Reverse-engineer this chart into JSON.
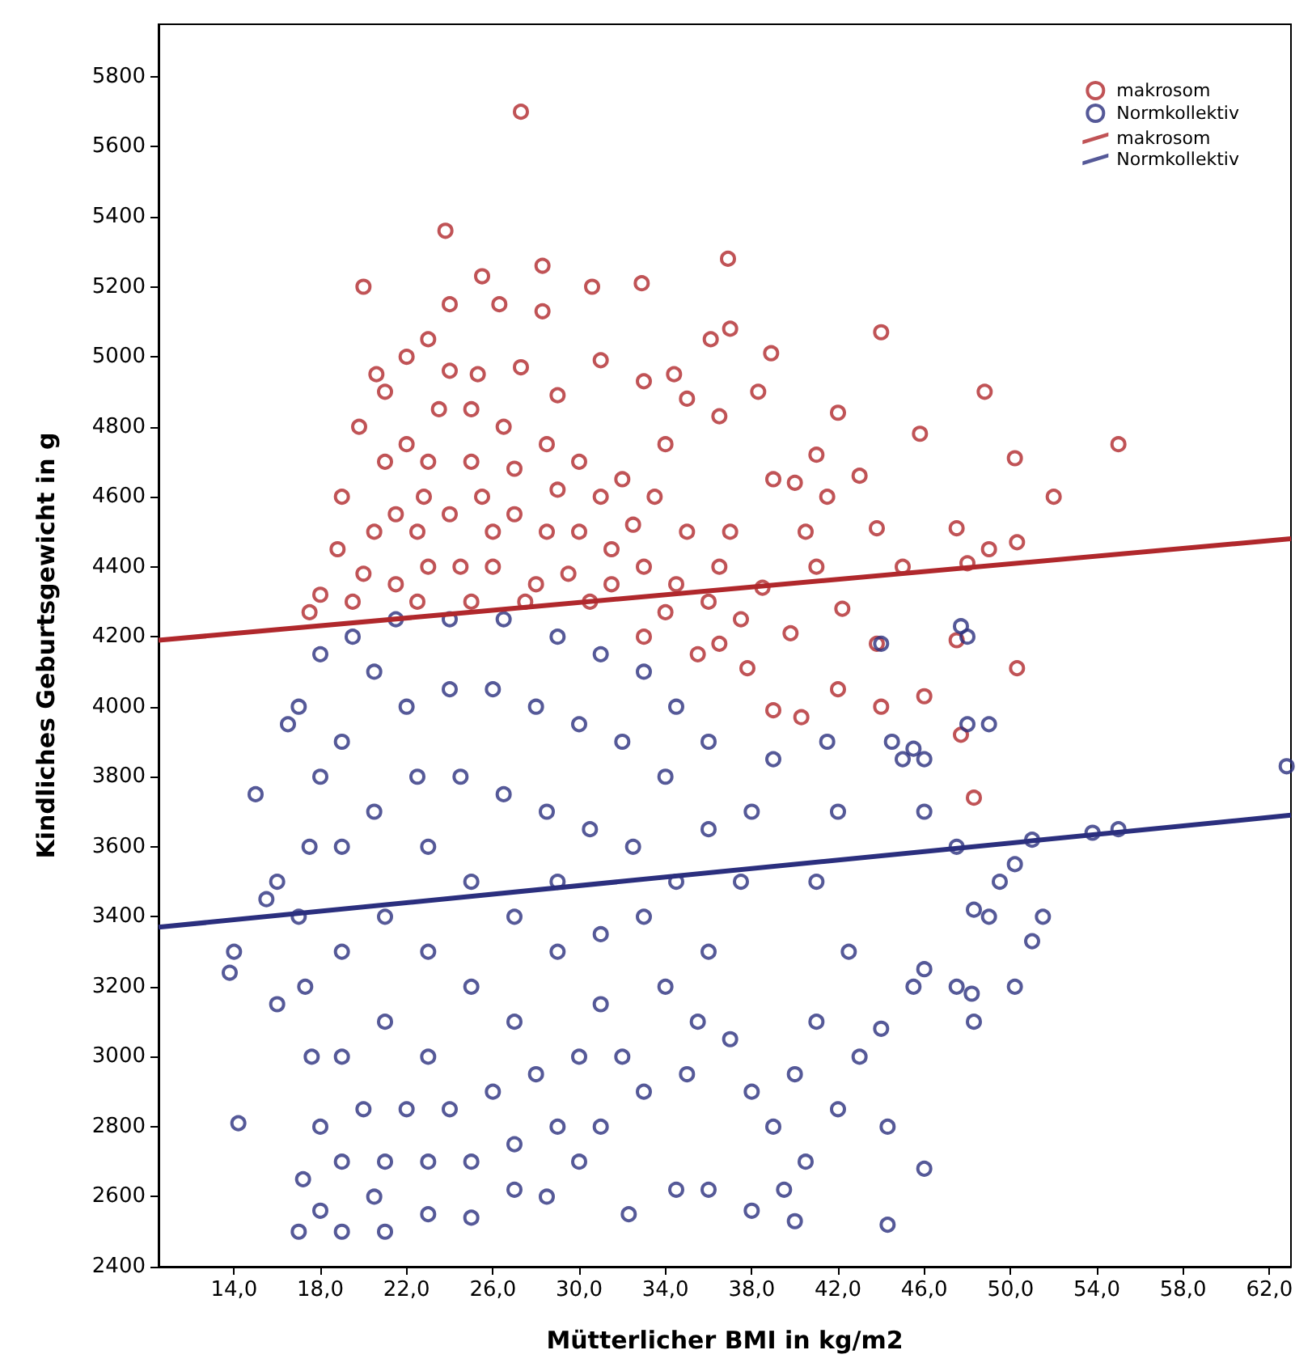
{
  "chart_data": {
    "type": "scatter",
    "xlabel": "Mütterlicher BMI in kg/m2",
    "ylabel": "Kindliches Geburtsgewicht in g",
    "xlim": [
      10.5,
      63
    ],
    "ylim": [
      2400,
      5950
    ],
    "xticks": [
      {
        "value": 14,
        "label": "14,0"
      },
      {
        "value": 18,
        "label": "18,0"
      },
      {
        "value": 22,
        "label": "22,0"
      },
      {
        "value": 26,
        "label": "26,0"
      },
      {
        "value": 30,
        "label": "30,0"
      },
      {
        "value": 34,
        "label": "34,0"
      },
      {
        "value": 38,
        "label": "38,0"
      },
      {
        "value": 42,
        "label": "42,0"
      },
      {
        "value": 46,
        "label": "46,0"
      },
      {
        "value": 50,
        "label": "50,0"
      },
      {
        "value": 54,
        "label": "54,0"
      },
      {
        "value": 58,
        "label": "58,0"
      },
      {
        "value": 62,
        "label": "62,0"
      }
    ],
    "yticks": [
      2400,
      2600,
      2800,
      3000,
      3200,
      3400,
      3600,
      3800,
      4000,
      4200,
      4400,
      4600,
      4800,
      5000,
      5200,
      5400,
      5600,
      5800
    ],
    "grid": false,
    "legend": "top right",
    "marker": "circle",
    "series": [
      {
        "name": "makrosom",
        "color": "#b0282c",
        "x": [
          27.3,
          23.8,
          25.5,
          24.0,
          26.3,
          28.3,
          28.3,
          30.6,
          32.9,
          36.9,
          37.0,
          36.1,
          34.4,
          38.9,
          44.0,
          45.8,
          48.8,
          50.2,
          52.0,
          55.0,
          42.0,
          20.0,
          20.6,
          22.0,
          23.0,
          25.3,
          27.3,
          29.0,
          31.0,
          33.0,
          35.0,
          36.5,
          38.3,
          40.0,
          41.5,
          39.0,
          43.8,
          43.0,
          45.0,
          47.5,
          48.0,
          49.0,
          50.3,
          47.5,
          50.3,
          46.0,
          47.7,
          48.3,
          44.0,
          42.2,
          43.8,
          42.0,
          40.3,
          39.0,
          37.8,
          39.8,
          41.0,
          36.5,
          35.0,
          33.5,
          32.0,
          30.0,
          28.5,
          26.5,
          25.0,
          23.5,
          22.0,
          21.0,
          19.8,
          18.8,
          18.0,
          17.5,
          19.0,
          20.5,
          21.5,
          22.8,
          24.0,
          25.5,
          27.0,
          28.5,
          30.0,
          31.5,
          33.0,
          34.5,
          36.0,
          37.5,
          35.5,
          33.0,
          30.5,
          28.0,
          26.0,
          24.5,
          23.0,
          21.5,
          20.0,
          19.5,
          22.5,
          25.0,
          27.5,
          29.5,
          31.5,
          34.0,
          36.5,
          38.5,
          37.0,
          34.0,
          31.0,
          29.0,
          27.0,
          25.0,
          23.0,
          21.0,
          24.0,
          22.5,
          26.0,
          32.5,
          40.5,
          41.0
        ],
        "values": [
          5700,
          5360,
          5230,
          5150,
          5150,
          5260,
          5130,
          5200,
          5210,
          5280,
          5080,
          5050,
          4950,
          5010,
          5070,
          4780,
          4900,
          4710,
          4600,
          4750,
          4840,
          5200,
          4950,
          5000,
          5050,
          4950,
          4970,
          4890,
          4990,
          4930,
          4880,
          4830,
          4900,
          4640,
          4600,
          4650,
          4510,
          4660,
          4400,
          4510,
          4410,
          4450,
          4470,
          4190,
          4110,
          4030,
          3920,
          3740,
          4000,
          4280,
          4180,
          4050,
          3970,
          3990,
          4110,
          4210,
          4400,
          4400,
          4500,
          4600,
          4650,
          4700,
          4750,
          4800,
          4850,
          4850,
          4750,
          4700,
          4800,
          4450,
          4320,
          4270,
          4600,
          4500,
          4550,
          4600,
          4550,
          4600,
          4550,
          4500,
          4500,
          4450,
          4400,
          4350,
          4300,
          4250,
          4150,
          4200,
          4300,
          4350,
          4400,
          4400,
          4400,
          4350,
          4380,
          4300,
          4300,
          4300,
          4300,
          4380,
          4350,
          4270,
          4180,
          4340,
          4500,
          4750,
          4600,
          4620,
          4680,
          4700,
          4700,
          4900,
          4960,
          4500,
          4500,
          4520,
          4500,
          4720
        ]
      },
      {
        "name": "Normkollektiv",
        "color": "#2b2f7e",
        "x": [
          14.2,
          13.8,
          14.0,
          15.0,
          16.0,
          15.5,
          16.5,
          16.0,
          17.0,
          17.2,
          18.0,
          19.0,
          20.5,
          21.0,
          23.0,
          25.0,
          27.0,
          28.5,
          30.0,
          32.3,
          34.5,
          38.0,
          39.5,
          42.0,
          44.3,
          44.3,
          46.0,
          46.0,
          43.0,
          44.0,
          45.5,
          47.5,
          48.2,
          48.3,
          50.2,
          51.0,
          51.5,
          50.2,
          49.5,
          49.0,
          48.3,
          47.5,
          46.0,
          45.0,
          46.0,
          44.5,
          45.5,
          48.0,
          49.0,
          48.0,
          47.7,
          44.0,
          41.5,
          42.0,
          41.0,
          42.5,
          41.0,
          40.0,
          39.0,
          40.5,
          38.0,
          37.0,
          36.0,
          37.5,
          38.0,
          39.0,
          36.0,
          34.5,
          33.0,
          31.0,
          29.0,
          26.5,
          24.0,
          21.5,
          19.5,
          18.0,
          17.0,
          18.0,
          17.5,
          17.0,
          17.3,
          17.6,
          18.0,
          19.0,
          21.0,
          23.0,
          25.0,
          27.0,
          29.0,
          31.0,
          33.0,
          35.0,
          34.0,
          32.0,
          30.0,
          28.0,
          26.0,
          24.0,
          22.0,
          20.0,
          19.0,
          19.0,
          19.0,
          19.0,
          20.5,
          22.0,
          24.0,
          26.0,
          28.0,
          30.0,
          32.0,
          34.0,
          36.0,
          34.5,
          32.5,
          30.5,
          28.5,
          26.5,
          24.5,
          22.5,
          20.5,
          21.0,
          21.0,
          23.0,
          23.0,
          23.0,
          25.0,
          25.0,
          27.0,
          27.0,
          29.0,
          29.0,
          31.0,
          31.0,
          33.0,
          35.5,
          62.8,
          53.8,
          55.0,
          51.0,
          40.0,
          36.0
        ],
        "values": [
          2810,
          3240,
          3300,
          3750,
          3500,
          3450,
          3950,
          3150,
          2500,
          2650,
          2560,
          2500,
          2600,
          2500,
          2550,
          2540,
          2620,
          2600,
          2700,
          2550,
          2620,
          2560,
          2620,
          2850,
          2520,
          2800,
          2680,
          3250,
          3000,
          3080,
          3200,
          3200,
          3180,
          3100,
          3200,
          3330,
          3400,
          3550,
          3500,
          3400,
          3420,
          3600,
          3700,
          3850,
          3850,
          3900,
          3880,
          3950,
          3950,
          4200,
          4230,
          4180,
          3900,
          3700,
          3500,
          3300,
          3100,
          2950,
          2800,
          2700,
          2900,
          3050,
          3300,
          3500,
          3700,
          3850,
          3900,
          4000,
          4100,
          4150,
          4200,
          4250,
          4250,
          4250,
          4200,
          4150,
          4000,
          3800,
          3600,
          3400,
          3200,
          3000,
          2800,
          2700,
          2700,
          2700,
          2700,
          2750,
          2800,
          2800,
          2900,
          2950,
          3200,
          3000,
          3000,
          2950,
          2900,
          2850,
          2850,
          2850,
          3000,
          3300,
          3600,
          3900,
          4100,
          4000,
          4050,
          4050,
          4000,
          3950,
          3900,
          3800,
          3650,
          3500,
          3600,
          3650,
          3700,
          3750,
          3800,
          3800,
          3700,
          3400,
          3100,
          3000,
          3300,
          3600,
          3500,
          3200,
          3100,
          3400,
          3300,
          3500,
          3350,
          3150,
          3400,
          3100,
          3830,
          3640,
          3650,
          3620,
          2530,
          2620
        ]
      },
      {
        "name": "makrosom",
        "type": "line",
        "color": "#b0282c",
        "line_style": "solid",
        "marker": "none",
        "x": [
          10.5,
          63
        ],
        "values": [
          4190,
          4480
        ]
      },
      {
        "name": "Normkollektiv",
        "type": "line",
        "color": "#2b2f7e",
        "line_style": "solid",
        "marker": "none",
        "x": [
          10.5,
          63
        ],
        "values": [
          3370,
          3690
        ]
      }
    ]
  }
}
